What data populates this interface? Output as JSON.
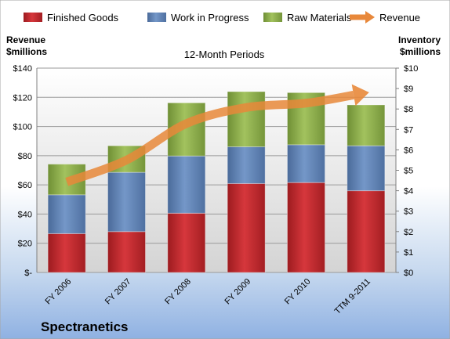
{
  "chart_data": {
    "type": "bar",
    "subtitle": "12-Month Periods",
    "company": "Spectranetics",
    "left_axis_label": [
      "Revenue",
      "$millions"
    ],
    "right_axis_label": [
      "Inventory",
      "$millions"
    ],
    "categories": [
      "FY 2006",
      "FY 2007",
      "FY 2008",
      "FY 2009",
      "FY 2010",
      "TTM 9-2011"
    ],
    "left_ylim": [
      0,
      140
    ],
    "left_ticks": [
      0,
      20,
      40,
      60,
      80,
      100,
      120,
      140
    ],
    "left_tick_labels": [
      "$-",
      "$20",
      "$40",
      "$60",
      "$80",
      "$100",
      "$120",
      "$140"
    ],
    "right_ylim": [
      0,
      10
    ],
    "right_ticks": [
      0,
      1,
      2,
      3,
      4,
      5,
      6,
      7,
      8,
      9,
      10
    ],
    "right_tick_labels": [
      "$0",
      "$1",
      "$2",
      "$3",
      "$4",
      "$5",
      "$6",
      "$7",
      "$8",
      "$9",
      "$10"
    ],
    "legend_position": "top",
    "grid": true,
    "series": [
      {
        "name": "Finished Goods",
        "color": "#c0262b",
        "axis": "right",
        "values": [
          1.9,
          2.0,
          2.9,
          4.35,
          4.4,
          4.0
        ]
      },
      {
        "name": "Work in Progress",
        "color": "#5b7fb4",
        "axis": "right",
        "values": [
          1.9,
          2.9,
          2.8,
          1.8,
          1.85,
          2.2
        ]
      },
      {
        "name": "Raw Materials",
        "color": "#8cae4a",
        "axis": "right",
        "values": [
          1.5,
          1.3,
          2.6,
          2.7,
          2.55,
          2.0
        ]
      },
      {
        "name": "Revenue",
        "color": "#e8883a",
        "axis": "left",
        "type": "line",
        "values": [
          62,
          77,
          102,
          113,
          116,
          123
        ]
      }
    ]
  }
}
